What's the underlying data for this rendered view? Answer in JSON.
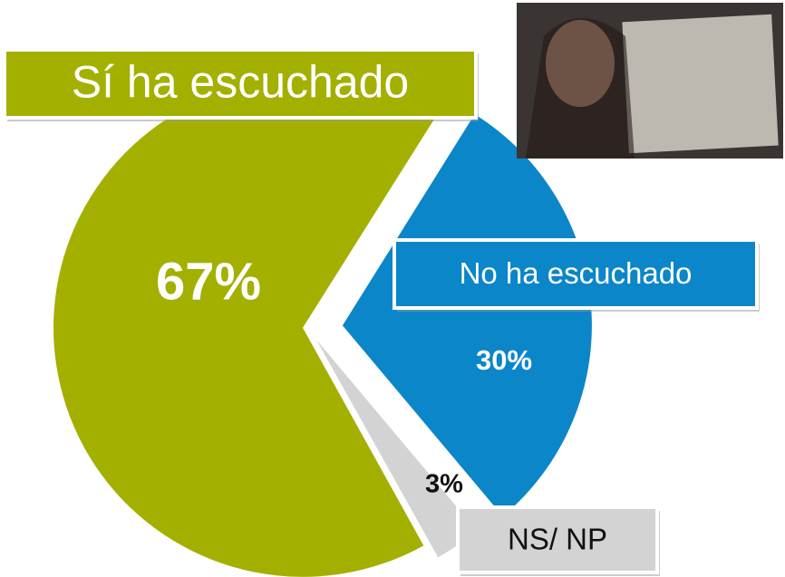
{
  "chart_data": {
    "type": "pie",
    "categories": [
      "Sí ha escuchado",
      "No ha escuchado",
      "NS/ NP"
    ],
    "values": [
      67,
      30,
      3
    ],
    "value_labels": [
      "67%",
      "30%",
      "3%"
    ],
    "colors": [
      "#a3b000",
      "#0b86c9",
      "#d3d3d3"
    ]
  }
}
